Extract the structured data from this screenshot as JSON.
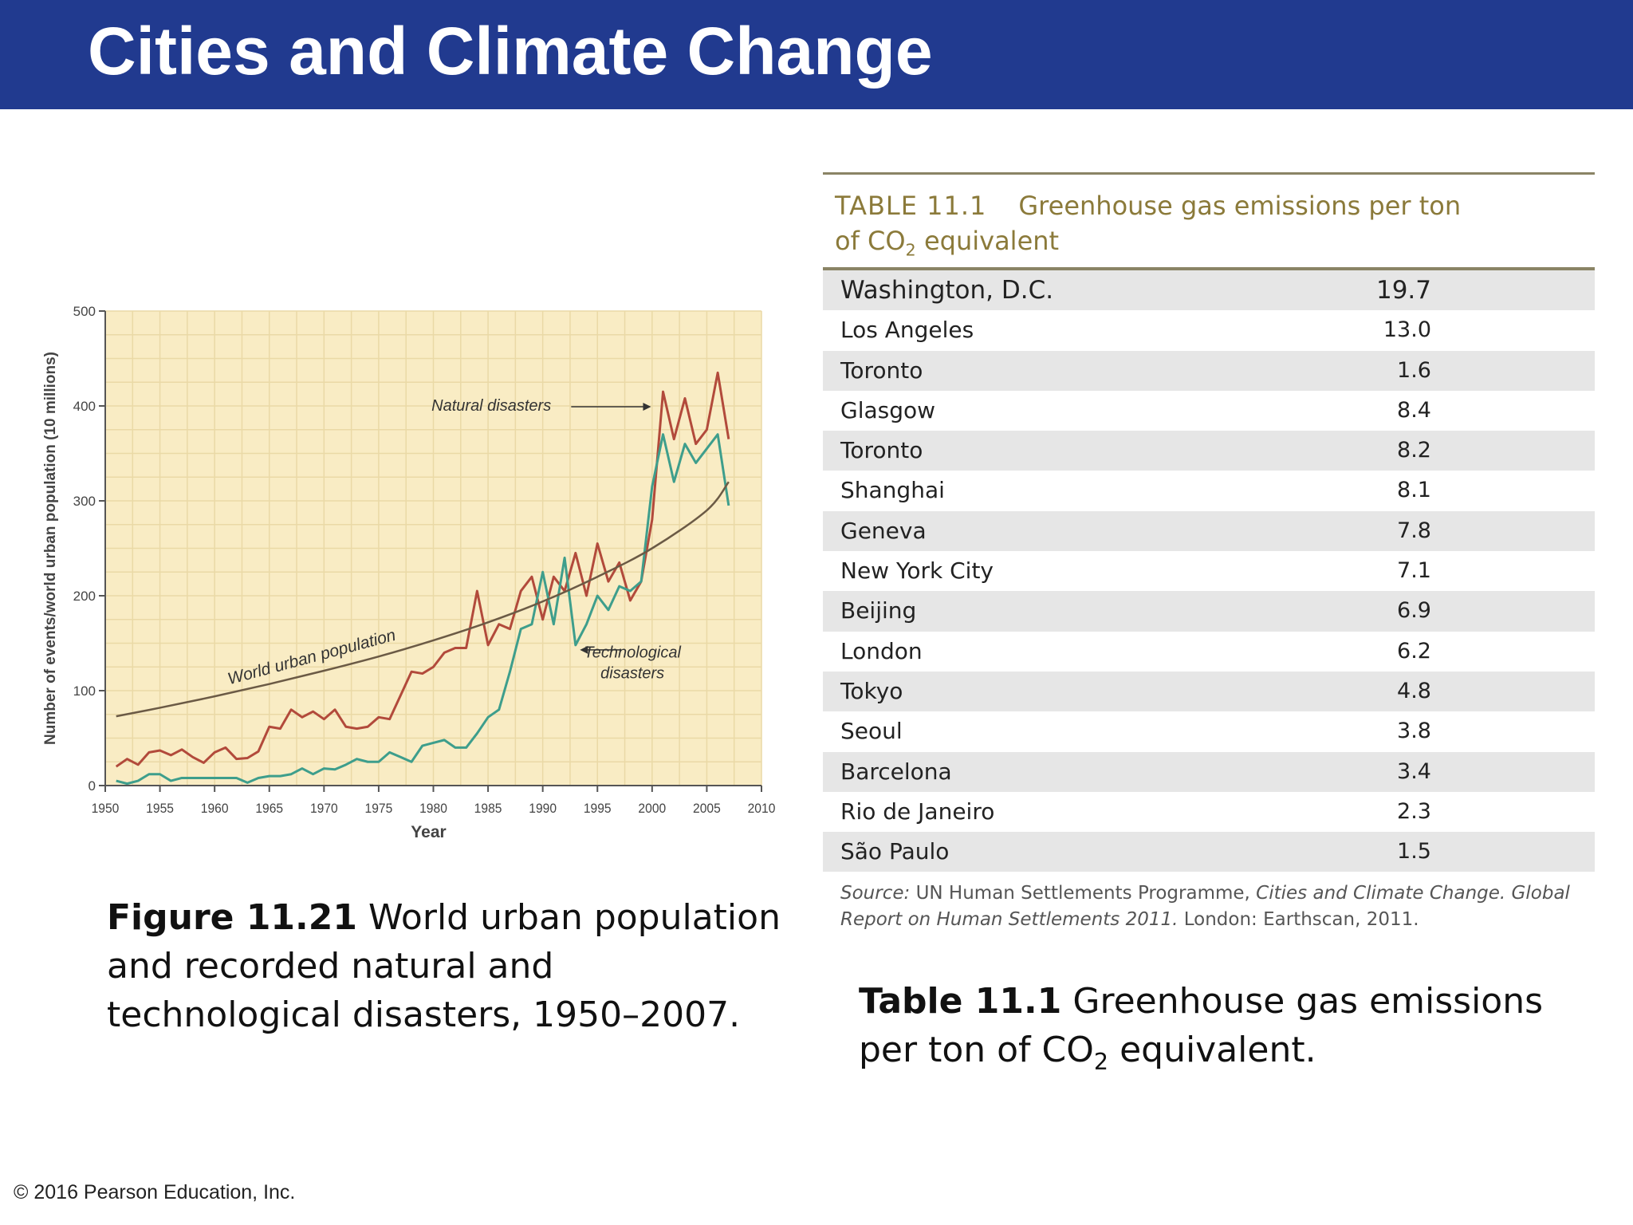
{
  "slide": {
    "title": "Cities and Climate Change",
    "copyright": "© 2016 Pearson Education, Inc."
  },
  "figure_caption": {
    "label": "Figure 11.21",
    "text": "World urban population and recorded natural and technological disasters, 1950–2007."
  },
  "table_caption": {
    "label": "Table 11.1",
    "text_before": "Greenhouse gas emissions per ton of CO",
    "subscript": "2",
    "text_after": " equivalent."
  },
  "table": {
    "number": "TABLE 11.1",
    "title_line1": "Greenhouse gas emissions per ton",
    "title_line2_before": "of CO",
    "title_sub": "2",
    "title_line2_after": " equivalent",
    "rows": [
      {
        "city": "Washington, D.C.",
        "value": "19.7"
      },
      {
        "city": "Los Angeles",
        "value": "13.0"
      },
      {
        "city": "Toronto",
        "value": "1.6"
      },
      {
        "city": "Glasgow",
        "value": "8.4"
      },
      {
        "city": "Toronto",
        "value": "8.2"
      },
      {
        "city": "Shanghai",
        "value": "8.1"
      },
      {
        "city": "Geneva",
        "value": "7.8"
      },
      {
        "city": "New York City",
        "value": "7.1"
      },
      {
        "city": "Beijing",
        "value": "6.9"
      },
      {
        "city": "London",
        "value": "6.2"
      },
      {
        "city": "Tokyo",
        "value": "4.8"
      },
      {
        "city": "Seoul",
        "value": "3.8"
      },
      {
        "city": "Barcelona",
        "value": "3.4"
      },
      {
        "city": "Rio de Janeiro",
        "value": "2.3"
      },
      {
        "city": "São Paulo",
        "value": "1.5"
      }
    ],
    "source_label": "Source:",
    "source_text_1": "UN Human Settlements Programme,",
    "source_title": "Cities and Climate Change. Global Report on Human Settlements 2011.",
    "source_text_2": "London: Earthscan, 2011."
  },
  "chart_data": {
    "type": "line",
    "title": "",
    "xlabel": "Year",
    "ylabel": "Number of events/world urban population (10 millions)",
    "xlim": [
      1950,
      2010
    ],
    "ylim": [
      0,
      500
    ],
    "x_ticks": [
      1950,
      1955,
      1960,
      1965,
      1970,
      1975,
      1980,
      1985,
      1990,
      1995,
      2000,
      2005,
      2010
    ],
    "y_ticks": [
      0,
      100,
      200,
      300,
      400,
      500
    ],
    "grid": true,
    "colors": {
      "plot_bg": "#f9ecc4",
      "grid": "#ead9a6",
      "natural": "#b24a3b",
      "technological": "#3e9e8c",
      "population": "#6b5a45"
    },
    "series": [
      {
        "name": "Natural disasters",
        "x": [
          1951,
          1952,
          1953,
          1954,
          1955,
          1956,
          1957,
          1958,
          1959,
          1960,
          1961,
          1962,
          1963,
          1964,
          1965,
          1966,
          1967,
          1968,
          1969,
          1970,
          1971,
          1972,
          1973,
          1974,
          1975,
          1976,
          1977,
          1978,
          1979,
          1980,
          1981,
          1982,
          1983,
          1984,
          1985,
          1986,
          1987,
          1988,
          1989,
          1990,
          1991,
          1992,
          1993,
          1994,
          1995,
          1996,
          1997,
          1998,
          1999,
          2000,
          2001,
          2002,
          2003,
          2004,
          2005,
          2006,
          2007
        ],
        "values": [
          20,
          28,
          22,
          35,
          37,
          32,
          38,
          30,
          24,
          35,
          40,
          28,
          29,
          36,
          62,
          60,
          80,
          72,
          78,
          70,
          80,
          62,
          60,
          62,
          72,
          70,
          95,
          120,
          118,
          125,
          140,
          145,
          145,
          205,
          148,
          170,
          165,
          205,
          220,
          175,
          220,
          205,
          245,
          200,
          255,
          215,
          235,
          195,
          215,
          280,
          415,
          365,
          408,
          360,
          375,
          435,
          365
        ]
      },
      {
        "name": "Technological disasters",
        "x": [
          1951,
          1952,
          1953,
          1954,
          1955,
          1956,
          1957,
          1958,
          1959,
          1960,
          1961,
          1962,
          1963,
          1964,
          1965,
          1966,
          1967,
          1968,
          1969,
          1970,
          1971,
          1972,
          1973,
          1974,
          1975,
          1976,
          1977,
          1978,
          1979,
          1980,
          1981,
          1982,
          1983,
          1984,
          1985,
          1986,
          1987,
          1988,
          1989,
          1990,
          1991,
          1992,
          1993,
          1994,
          1995,
          1996,
          1997,
          1998,
          1999,
          2000,
          2001,
          2002,
          2003,
          2004,
          2005,
          2006,
          2007
        ],
        "values": [
          5,
          2,
          5,
          12,
          12,
          5,
          8,
          8,
          8,
          8,
          8,
          8,
          3,
          8,
          10,
          10,
          12,
          18,
          12,
          18,
          17,
          22,
          28,
          25,
          25,
          35,
          30,
          25,
          42,
          45,
          48,
          40,
          40,
          55,
          72,
          80,
          120,
          165,
          170,
          225,
          170,
          240,
          148,
          170,
          200,
          185,
          210,
          205,
          215,
          315,
          370,
          320,
          360,
          340,
          355,
          370,
          295
        ]
      },
      {
        "name": "World urban population",
        "x": [
          1951,
          1955,
          1960,
          1965,
          1970,
          1975,
          1980,
          1985,
          1990,
          1995,
          2000,
          2005,
          2007
        ],
        "values": [
          73,
          82,
          94,
          107,
          121,
          136,
          153,
          172,
          194,
          220,
          250,
          290,
          320
        ]
      }
    ],
    "annotations": [
      {
        "text": "Natural disasters",
        "series": "Natural disasters"
      },
      {
        "text": "Technological disasters",
        "series": "Technological disasters"
      },
      {
        "text": "World urban population",
        "series": "World urban population"
      }
    ]
  }
}
